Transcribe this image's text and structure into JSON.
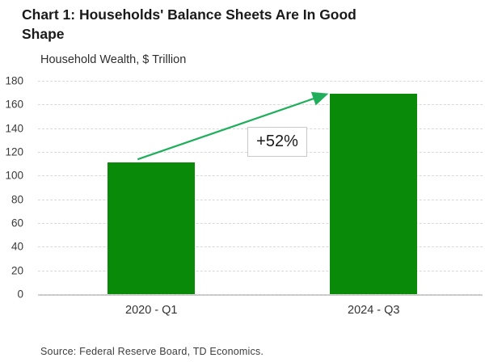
{
  "chart_data": {
    "type": "bar",
    "title": "Chart 1: Households' Balance Sheets Are In Good Shape",
    "subtitle": "Household Wealth, $ Trillion",
    "categories": [
      "2020 - Q1",
      "2024 - Q3"
    ],
    "values": [
      111,
      169
    ],
    "ylim": [
      0,
      180
    ],
    "ytick_step": 20,
    "yticks": [
      0,
      20,
      40,
      60,
      80,
      100,
      120,
      140,
      160,
      180
    ],
    "grid": "horizontal-dashed",
    "legend": "none",
    "bar_color": "#098A09",
    "annotation": {
      "type": "growth-arrow",
      "text": "+52%",
      "from_category": "2020 - Q1",
      "to_category": "2024 - Q3",
      "arrow_color": "#1FAF5B"
    }
  },
  "source_note": "Source: Federal Reserve Board, TD Economics.",
  "colors": {
    "gridline": "#D8D8D8",
    "axis_line": "#C6C6C6",
    "title_text": "#1A1A1A",
    "tick_text": "#3A3A3A"
  }
}
